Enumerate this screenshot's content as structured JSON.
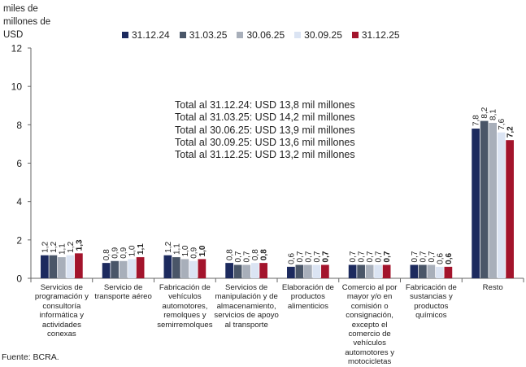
{
  "chart_data": {
    "type": "bar",
    "ylabel": "miles de millones de USD",
    "ylim": [
      0,
      12
    ],
    "yticks": [
      "0",
      "2",
      "4",
      "6",
      "8",
      "10",
      "12"
    ],
    "grid": false,
    "legend_position": "top",
    "categories": [
      "Servicios de programación y consultoría informática y actividades conexas",
      "Servicio de transporte aéreo",
      "Fabricación de vehículos automotores, remolques y semirremolques",
      "Servicios de manipulación y de almacenamiento, servicios de apoyo al transporte",
      "Elaboración de productos alimenticios",
      "Comercio al por mayor y/o en comisión o consignación, excepto el comercio de vehículos automotores y motocicletas",
      "Fabricación de sustancias y productos químicos",
      "Resto"
    ],
    "series": [
      {
        "name": "31.12.24",
        "color": "#1c2a5e",
        "values": [
          1.2,
          0.8,
          1.2,
          0.8,
          0.6,
          0.7,
          0.7,
          7.8
        ],
        "labels": [
          "1,2",
          "0,8",
          "1,2",
          "0,8",
          "0,6",
          "0,7",
          "0,7",
          "7,8"
        ]
      },
      {
        "name": "31.03.25",
        "color": "#4a5668",
        "values": [
          1.2,
          0.9,
          1.1,
          0.7,
          0.7,
          0.7,
          0.7,
          8.2
        ],
        "labels": [
          "1,2",
          "0,9",
          "1,1",
          "0,7",
          "0,7",
          "0,7",
          "0,7",
          "8,2"
        ]
      },
      {
        "name": "30.06.25",
        "color": "#a8afba",
        "values": [
          1.1,
          0.9,
          1.0,
          0.7,
          0.7,
          0.7,
          0.7,
          8.1
        ],
        "labels": [
          "1,1",
          "0,9",
          "1,0",
          "0,7",
          "0,7",
          "0,7",
          "0,7",
          "8,1"
        ]
      },
      {
        "name": "30.09.25",
        "color": "#dbe4f3",
        "values": [
          1.2,
          1.0,
          0.9,
          0.8,
          0.7,
          0.7,
          0.6,
          7.6
        ],
        "labels": [
          "1,2",
          "1,0",
          "0,9",
          "0,8",
          "0,7",
          "0,7",
          "0,6",
          "7,6"
        ]
      },
      {
        "name": "31.12.25",
        "color": "#a3142c",
        "values": [
          1.3,
          1.1,
          1.0,
          0.8,
          0.7,
          0.7,
          0.6,
          7.2
        ],
        "labels": [
          "1,3",
          "1,1",
          "1,0",
          "0,8",
          "0,7",
          "0,7",
          "0,6",
          "7,2"
        ]
      }
    ],
    "annotations": [
      "Total al 31.12.24: USD  13,8  mil millones",
      "Total al 31.03.25: USD  14,2  mil millones",
      "Total al 30.06.25: USD 13,9  mil millones",
      "Total al 30.09.25: USD 13,6 mil millones",
      "Total al 31.12.25: USD 13,2 mil millones"
    ]
  },
  "source": "Fuente: BCRA."
}
